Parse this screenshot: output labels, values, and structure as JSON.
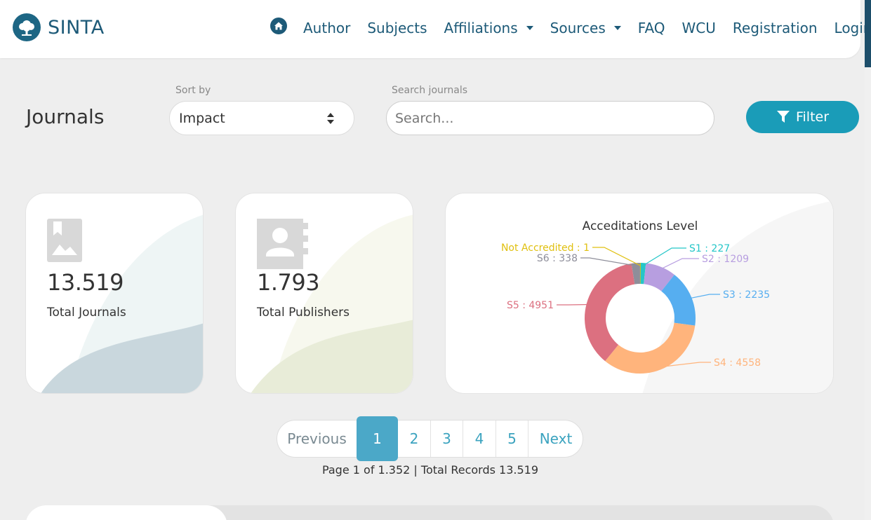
{
  "brand": {
    "name": "SINTA"
  },
  "nav": {
    "home_icon": "home-icon",
    "items": [
      {
        "label": "Author",
        "dropdown": false
      },
      {
        "label": "Subjects",
        "dropdown": false
      },
      {
        "label": "Affiliations",
        "dropdown": true
      },
      {
        "label": "Sources",
        "dropdown": true
      },
      {
        "label": "FAQ",
        "dropdown": false
      },
      {
        "label": "WCU",
        "dropdown": false
      },
      {
        "label": "Registration",
        "dropdown": false
      },
      {
        "label": "Login",
        "dropdown": false
      }
    ]
  },
  "page": {
    "title": "Journals"
  },
  "sort": {
    "label": "Sort by",
    "value": "Impact"
  },
  "search": {
    "label": "Search journals",
    "placeholder": "Search...",
    "value": ""
  },
  "filter": {
    "label": "Filter",
    "icon": "filter-icon"
  },
  "stats": {
    "journals": {
      "value": "13.519",
      "label": "Total Journals",
      "icon": "image-icon"
    },
    "publishers": {
      "value": "1.793",
      "label": "Total Publishers",
      "icon": "contact-book-icon"
    }
  },
  "chart_data": {
    "type": "pie",
    "title": "Acceditations Level",
    "categories": [
      "S1",
      "S2",
      "S3",
      "S4",
      "S5",
      "S6",
      "Not Accredited"
    ],
    "values": [
      227,
      1209,
      2235,
      4558,
      4951,
      338,
      1
    ],
    "labels": [
      "S1 : 227",
      "S2 : 1209",
      "S3 : 2235",
      "S4 : 4558",
      "S5 : 4951",
      "S6 : 338",
      "Not Accredited : 1"
    ],
    "colors": [
      "#24c6c8",
      "#b79ee0",
      "#56aef0",
      "#ffb47c",
      "#dc7080",
      "#8e8e9a",
      "#e0c010"
    ],
    "donut": true
  },
  "pagination": {
    "previous": "Previous",
    "pages": [
      "1",
      "2",
      "3",
      "4",
      "5"
    ],
    "current": "1",
    "next": "Next",
    "info": "Page 1 of 1.352 | Total Records 13.519"
  },
  "colors": {
    "primary": "#1d5a78",
    "accent": "#1a9cb8",
    "active_page": "#4ba8c8"
  }
}
